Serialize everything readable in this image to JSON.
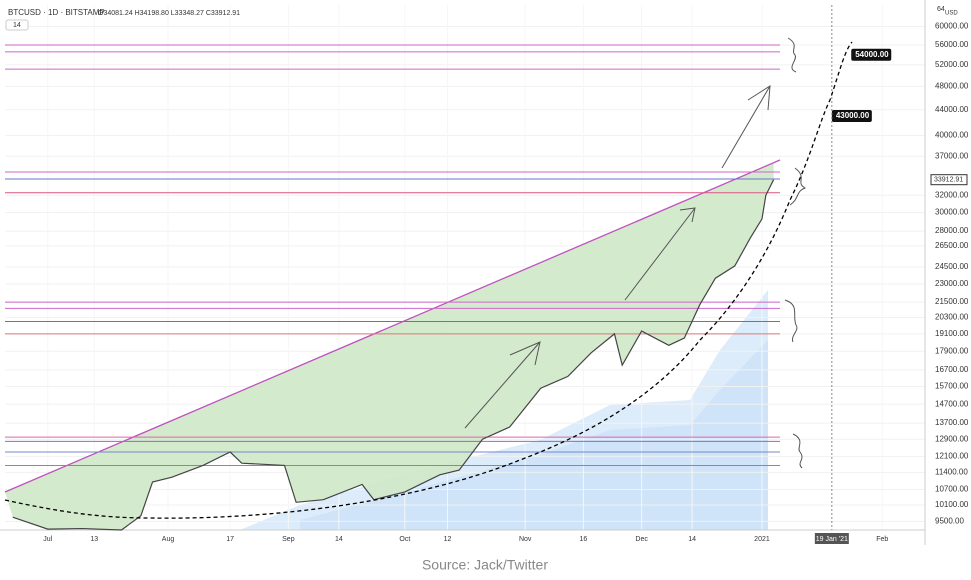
{
  "header": {
    "symbol": "BTCUSD · 1D · BITSTAMP",
    "ohlc": "O34081.24 H34198.80 L33348.27 C33912.91",
    "indicator": "14",
    "axis_top": "64",
    "currency": "USD"
  },
  "chart_data": {
    "type": "line",
    "log_scale": true,
    "color": "#444444",
    "x": [
      "2020-06-22",
      "2020-07-01",
      "2020-07-10",
      "2020-07-20",
      "2020-07-25",
      "2020-07-28",
      "2020-08-02",
      "2020-08-10",
      "2020-08-17",
      "2020-08-20",
      "2020-08-31",
      "2020-09-03",
      "2020-09-10",
      "2020-09-20",
      "2020-09-23",
      "2020-10-01",
      "2020-10-10",
      "2020-10-15",
      "2020-10-21",
      "2020-10-28",
      "2020-11-05",
      "2020-11-12",
      "2020-11-18",
      "2020-11-24",
      "2020-11-26",
      "2020-12-01",
      "2020-12-08",
      "2020-12-12",
      "2020-12-16",
      "2020-12-20",
      "2020-12-25",
      "2020-12-29",
      "2021-01-01",
      "2021-01-02",
      "2021-01-04"
    ],
    "series": [
      {
        "name": "BTCUSD",
        "color": "#444444",
        "values": [
          9650,
          9230,
          9250,
          9200,
          9700,
          11000,
          11200,
          11700,
          12300,
          11800,
          11700,
          10200,
          10300,
          10900,
          10300,
          10600,
          11300,
          11500,
          12900,
          13500,
          15600,
          16300,
          17800,
          19100,
          17000,
          19300,
          18300,
          18800,
          21300,
          23500,
          24600,
          27300,
          29300,
          32000,
          33912.91
        ]
      }
    ],
    "xlim": [
      "2020-06-20",
      "2021-02-12"
    ],
    "xticks": [
      {
        "value": "2020-07-01",
        "label": "Jul"
      },
      {
        "value": "2020-07-13",
        "label": "13"
      },
      {
        "value": "2020-08-01",
        "label": "Aug"
      },
      {
        "value": "2020-08-17",
        "label": "17"
      },
      {
        "value": "2020-09-01",
        "label": "Sep"
      },
      {
        "value": "2020-09-14",
        "label": "14"
      },
      {
        "value": "2020-10-01",
        "label": "Oct"
      },
      {
        "value": "2020-10-12",
        "label": "12"
      },
      {
        "value": "2020-11-01",
        "label": "Nov"
      },
      {
        "value": "2020-11-16",
        "label": "16"
      },
      {
        "value": "2020-12-01",
        "label": "Dec"
      },
      {
        "value": "2020-12-14",
        "label": "14"
      },
      {
        "value": "2021-01-01",
        "label": "2021"
      },
      {
        "value": "2021-02-01",
        "label": "Feb"
      }
    ],
    "ylim": [
      9200,
      65000
    ],
    "yticks": [
      {
        "value": 60000,
        "label": "60000.00"
      },
      {
        "value": 56000,
        "label": "56000.00"
      },
      {
        "value": 52000,
        "label": "52000.00"
      },
      {
        "value": 48000,
        "label": "48000.00"
      },
      {
        "value": 44000,
        "label": "44000.00"
      },
      {
        "value": 40000,
        "label": "40000.00"
      },
      {
        "value": 37000,
        "label": "37000.00"
      },
      {
        "value": 32000,
        "label": "32000.00"
      },
      {
        "value": 30000,
        "label": "30000.00"
      },
      {
        "value": 28000,
        "label": "28000.00"
      },
      {
        "value": 26500,
        "label": "26500.00"
      },
      {
        "value": 24500,
        "label": "24500.00"
      },
      {
        "value": 23000,
        "label": "23000.00"
      },
      {
        "value": 21500,
        "label": "21500.00"
      },
      {
        "value": 20300,
        "label": "20300.00"
      },
      {
        "value": 19100,
        "label": "19100.00"
      },
      {
        "value": 17900,
        "label": "17900.00"
      },
      {
        "value": 16700,
        "label": "16700.00"
      },
      {
        "value": 15700,
        "label": "15700.00"
      },
      {
        "value": 14700,
        "label": "14700.00"
      },
      {
        "value": 13700,
        "label": "13700.00"
      },
      {
        "value": 12900,
        "label": "12900.00"
      },
      {
        "value": 12100,
        "label": "12100.00"
      },
      {
        "value": 11400,
        "label": "11400.00"
      },
      {
        "value": 10700,
        "label": "10700.00"
      },
      {
        "value": 10100,
        "label": "10100.00"
      },
      {
        "value": 9500,
        "label": "9500.00"
      }
    ],
    "grid": true,
    "levels": [
      {
        "value": 56000,
        "color": "#cc66cc"
      },
      {
        "value": 54600,
        "color": "#cc66cc"
      },
      {
        "value": 51200,
        "color": "#cc66cc"
      },
      {
        "value": 34900,
        "color": "#cc66cc"
      },
      {
        "value": 34000,
        "color": "#6677cc"
      },
      {
        "value": 32300,
        "color": "#dd5588"
      },
      {
        "value": 21500,
        "color": "#cc66cc"
      },
      {
        "value": 21000,
        "color": "#cc66cc"
      },
      {
        "value": 20000,
        "color": "#5577cc"
      },
      {
        "value": 19100,
        "color": "#dd7777"
      },
      {
        "value": 13000,
        "color": "#dd66aa"
      },
      {
        "value": 12800,
        "color": "#9966cc"
      },
      {
        "value": 12300,
        "color": "#7788cc"
      },
      {
        "value": 11700,
        "color": "#9977cc"
      }
    ],
    "last_price": {
      "value": 33912.91,
      "label": "33912.91"
    },
    "targets": [
      {
        "date": "2021-01-24",
        "value": 54000,
        "label": "54000.00"
      },
      {
        "date": "2021-01-19",
        "value": 43000,
        "label": "43000.00"
      }
    ],
    "crosshair": {
      "date": "2021-01-19",
      "label": "19 Jan '21"
    }
  },
  "source": "Source: Jack/Twitter"
}
